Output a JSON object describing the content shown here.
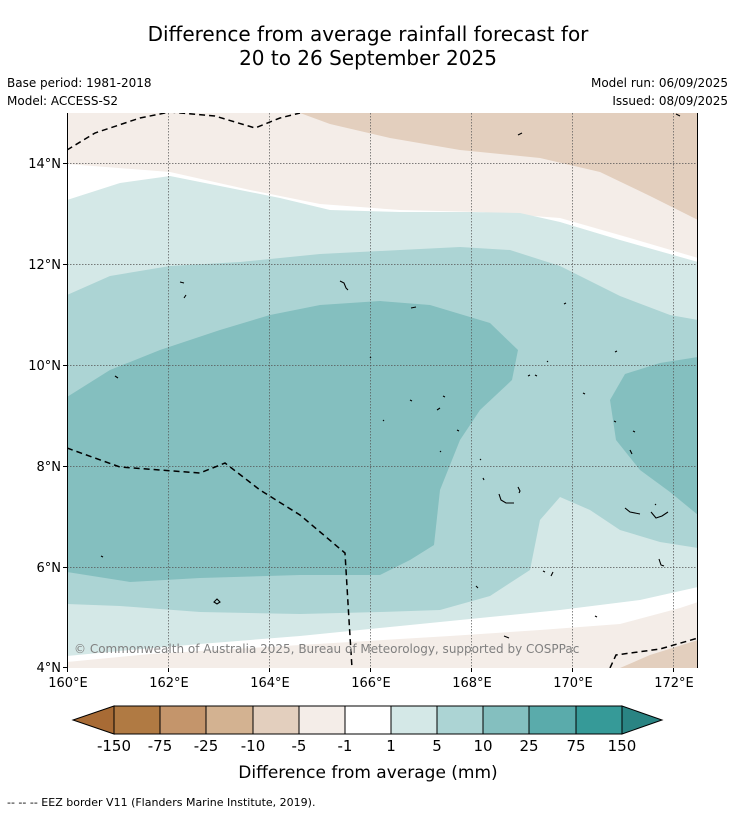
{
  "title_line1": "Difference from average rainfall forecast for",
  "title_line2": "20 to 26 September 2025",
  "base_period": "Base period: 1981-2018",
  "model": "Model: ACCESS-S2",
  "model_run": "Model run: 06/09/2025",
  "issued": "Issued: 08/09/2025",
  "copyright": "© Commonwealth of Australia 2025, Bureau of Meteorology, supported by COSPPac",
  "footer": "--  --  -- EEZ border V11 (Flanders Marine Institute, 2019).",
  "map": {
    "lon_ticks": [
      "160°E",
      "162°E",
      "164°E",
      "166°E",
      "168°E",
      "170°E",
      "172°E"
    ],
    "lat_ticks": [
      "14°N",
      "12°N",
      "10°N",
      "8°N",
      "6°N",
      "4°N"
    ]
  },
  "colorbar": {
    "label": "Difference from average (mm)",
    "ticks": [
      "-150",
      "-75",
      "-25",
      "-10",
      "-5",
      "-1",
      "1",
      "5",
      "10",
      "25",
      "75",
      "150"
    ],
    "colors": [
      "#a86b35",
      "#b07a43",
      "#c4956b",
      "#d3b291",
      "#e3cfbe",
      "#f4ede8",
      "#ffffff",
      "#d4e8e7",
      "#acd4d4",
      "#84bfbf",
      "#5aabab",
      "#369a98",
      "#2a8483"
    ]
  }
}
